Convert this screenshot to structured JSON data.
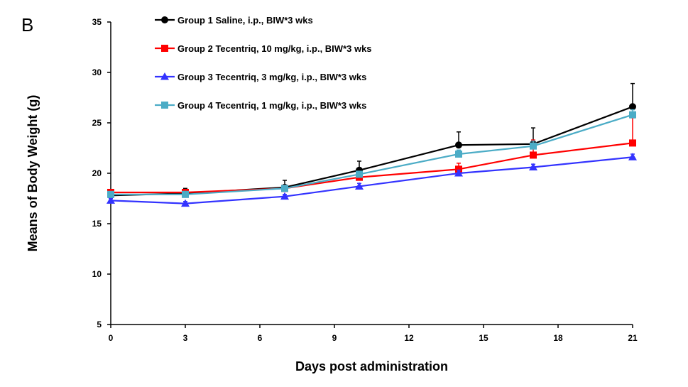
{
  "panel_label": "B",
  "chart_data": {
    "type": "line",
    "title": "",
    "xlabel": "Days post administration",
    "ylabel": "Means of Body Weight (g)",
    "xlim": [
      0,
      21
    ],
    "ylim": [
      5,
      35
    ],
    "xticks": [
      0,
      3,
      6,
      9,
      12,
      15,
      18,
      21
    ],
    "yticks": [
      5,
      10,
      15,
      20,
      25,
      30,
      35
    ],
    "grid": false,
    "legend_position": "top-left",
    "x": [
      0,
      3,
      7,
      10,
      14,
      17,
      21
    ],
    "series": [
      {
        "name": "Group 1 Saline, i.p., BIW*3 wks",
        "color": "#000000",
        "marker": "circle",
        "values": [
          17.8,
          18.0,
          18.6,
          20.3,
          22.8,
          22.9,
          26.6
        ],
        "errors": [
          0.3,
          0.5,
          0.7,
          0.9,
          1.3,
          1.6,
          2.3
        ]
      },
      {
        "name": "Group 2 Tecentriq, 10 mg/kg, i.p., BIW*3 wks",
        "color": "#ff0000",
        "marker": "square",
        "values": [
          18.1,
          18.1,
          18.5,
          19.6,
          20.4,
          21.8,
          23.0
        ],
        "errors": [
          0.2,
          0.3,
          0.3,
          0.4,
          0.6,
          1.5,
          2.5
        ]
      },
      {
        "name": "Group 3 Tecentriq, 3 mg/kg, i.p., BIW*3 wks",
        "color": "#3333ff",
        "marker": "triangle",
        "values": [
          17.3,
          17.0,
          17.7,
          18.7,
          20.0,
          20.6,
          21.6
        ],
        "errors": [
          0.2,
          0.2,
          0.2,
          0.3,
          0.3,
          0.3,
          0.3
        ]
      },
      {
        "name": "Group 4 Tecentriq, 1 mg/kg, i.p., BIW*3 wks",
        "color": "#4bacc6",
        "marker": "square",
        "values": [
          17.9,
          17.9,
          18.5,
          19.9,
          21.9,
          22.7,
          25.8
        ],
        "errors": [
          0.2,
          0.3,
          0.3,
          0.3,
          0.4,
          0.5,
          0.5
        ]
      }
    ]
  }
}
